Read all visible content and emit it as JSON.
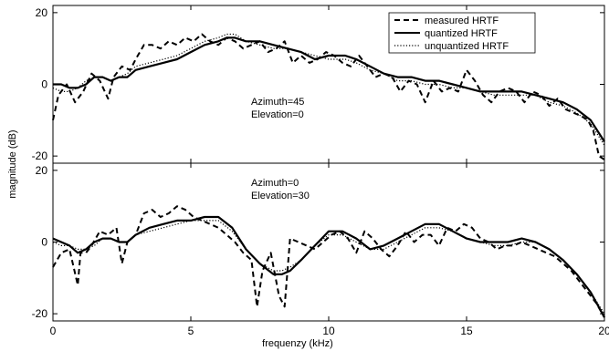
{
  "chart_data": {
    "type": "line",
    "xlabel": "frequenzy (kHz)",
    "ylabel": "magnitude (dB)",
    "xlim": [
      0,
      20
    ],
    "x_ticks": [
      0,
      5,
      10,
      15,
      20
    ],
    "legend": {
      "placement": "top-right",
      "entries": [
        {
          "name": "measured HRTF",
          "style": "dashed"
        },
        {
          "name": "quantized HRTF",
          "style": "solid"
        },
        {
          "name": "unquantized HRTF",
          "style": "dotted"
        }
      ]
    },
    "panels": [
      {
        "annotation": [
          "Azimuth=45",
          "Elevation=0"
        ],
        "ylim": [
          -22,
          22
        ],
        "y_ticks": [
          -20,
          0,
          20
        ],
        "series": [
          {
            "name": "measured HRTF",
            "x": [
              0,
              0.2,
              0.5,
              0.8,
              1.1,
              1.4,
              1.7,
              2.0,
              2.2,
              2.5,
              2.8,
              3.0,
              3.3,
              3.6,
              3.9,
              4.2,
              4.5,
              4.8,
              5.1,
              5.4,
              5.7,
              6.0,
              6.3,
              6.6,
              6.9,
              7.2,
              7.5,
              7.8,
              8.1,
              8.4,
              8.7,
              9.0,
              9.3,
              9.6,
              9.9,
              10.2,
              10.5,
              10.8,
              11.1,
              11.4,
              11.7,
              12.0,
              12.3,
              12.6,
              12.9,
              13.2,
              13.5,
              13.8,
              14.1,
              14.4,
              14.7,
              15.0,
              15.3,
              15.6,
              15.9,
              16.2,
              16.5,
              16.8,
              17.1,
              17.4,
              17.7,
              18.0,
              18.3,
              18.6,
              18.9,
              19.2,
              19.4,
              19.6,
              19.8,
              20.0
            ],
            "y": [
              -10,
              -3,
              0,
              -5,
              -2,
              3,
              1,
              -4,
              2,
              5,
              4,
              7,
              11,
              11,
              10,
              12,
              11,
              13,
              12,
              14,
              12,
              11,
              13,
              12,
              10,
              11,
              12,
              9,
              10,
              12,
              6,
              8,
              6,
              7,
              9,
              8,
              6,
              5,
              8,
              5,
              2,
              3,
              2,
              -2,
              1,
              0,
              -5,
              1,
              -2,
              -1,
              -2,
              4,
              1,
              -3,
              -5,
              -2,
              -1,
              -2,
              -5,
              -2,
              -3,
              -6,
              -4,
              -7,
              -8,
              -9,
              -10,
              -13,
              -20,
              -21
            ]
          },
          {
            "name": "quantized HRTF",
            "x": [
              0,
              0.3,
              0.6,
              0.9,
              1.2,
              1.5,
              1.8,
              2.1,
              2.4,
              2.7,
              3.0,
              3.5,
              4.0,
              4.5,
              5.0,
              5.5,
              6.0,
              6.3,
              6.6,
              7.0,
              7.5,
              8.0,
              8.5,
              9.0,
              9.5,
              10.0,
              10.3,
              10.6,
              11.0,
              11.5,
              12.0,
              12.5,
              13.0,
              13.5,
              14.0,
              14.5,
              15.0,
              15.5,
              16.0,
              16.5,
              17.0,
              17.5,
              18.0,
              18.5,
              19.0,
              19.5,
              20.0
            ],
            "y": [
              0,
              0,
              -1,
              -1,
              0,
              2,
              2,
              1,
              2,
              2,
              4,
              5,
              6,
              7,
              9,
              11,
              12,
              13,
              13,
              12,
              12,
              11,
              10,
              9,
              7,
              8,
              8,
              8,
              7,
              5,
              3,
              2,
              2,
              1,
              1,
              0,
              -1,
              -2,
              -2,
              -2,
              -2,
              -3,
              -4,
              -5,
              -7,
              -10,
              -16
            ]
          },
          {
            "name": "unquantized HRTF",
            "x": [
              0,
              0.3,
              0.6,
              0.9,
              1.2,
              1.5,
              1.8,
              2.1,
              2.4,
              2.7,
              3.0,
              3.5,
              4.0,
              4.5,
              5.0,
              5.5,
              6.0,
              6.3,
              6.6,
              7.0,
              7.5,
              8.0,
              8.5,
              9.0,
              9.5,
              10.0,
              10.3,
              10.6,
              11.0,
              11.5,
              12.0,
              12.5,
              13.0,
              13.5,
              14.0,
              14.5,
              15.0,
              15.5,
              16.0,
              16.5,
              17.0,
              17.5,
              18.0,
              18.5,
              19.0,
              19.5,
              20.0
            ],
            "y": [
              -1,
              -2,
              -2,
              -1,
              1,
              2,
              2,
              1,
              2,
              3,
              5,
              6,
              7,
              8,
              10,
              12,
              13,
              14,
              14,
              12,
              11,
              10,
              10,
              9,
              8,
              7,
              7,
              7,
              6,
              4,
              3,
              1,
              1,
              0,
              0,
              -1,
              -1,
              -2,
              -3,
              -3,
              -3,
              -3,
              -5,
              -6,
              -8,
              -11,
              -17
            ]
          }
        ]
      },
      {
        "annotation": [
          "Azimuth=0",
          "Elevation=30"
        ],
        "ylim": [
          -22,
          22
        ],
        "y_ticks": [
          -20,
          0,
          20
        ],
        "series": [
          {
            "name": "measured HRTF",
            "x": [
              0,
              0.3,
              0.6,
              0.9,
              1.0,
              1.2,
              1.4,
              1.7,
              2.0,
              2.3,
              2.5,
              2.7,
              3.0,
              3.3,
              3.6,
              3.9,
              4.2,
              4.5,
              4.8,
              5.1,
              5.4,
              5.7,
              6.0,
              6.3,
              6.6,
              6.9,
              7.2,
              7.4,
              7.6,
              7.9,
              8.2,
              8.4,
              8.6,
              8.9,
              9.2,
              9.5,
              9.8,
              10.1,
              10.4,
              10.7,
              11.0,
              11.3,
              11.6,
              11.9,
              12.2,
              12.5,
              12.8,
              13.1,
              13.4,
              13.7,
              14.0,
              14.3,
              14.6,
              14.9,
              15.2,
              15.5,
              15.8,
              16.1,
              16.4,
              16.7,
              17.0,
              17.3,
              17.6,
              17.9,
              18.2,
              18.5,
              18.8,
              19.1,
              19.4,
              19.7,
              20.0
            ],
            "y": [
              -7,
              -3,
              -2,
              -12,
              -3,
              -3,
              -1,
              3,
              2,
              4,
              -6,
              0,
              2,
              8,
              9,
              7,
              8,
              10,
              9,
              7,
              6,
              5,
              4,
              2,
              0,
              -3,
              -5,
              -18,
              -8,
              -3,
              -15,
              -18,
              1,
              0,
              -1,
              -2,
              0,
              2,
              3,
              1,
              -3,
              3,
              1,
              -2,
              -4,
              -1,
              3,
              0,
              2,
              2,
              -1,
              4,
              3,
              5,
              4,
              1,
              0,
              -2,
              -1,
              -1,
              0,
              -1,
              -2,
              -3,
              -4,
              -6,
              -8,
              -11,
              -14,
              -17,
              -21
            ]
          },
          {
            "name": "quantized HRTF",
            "x": [
              0,
              0.3,
              0.6,
              0.9,
              1.2,
              1.5,
              1.8,
              2.1,
              2.4,
              2.7,
              3.0,
              3.5,
              4.0,
              4.5,
              5.0,
              5.5,
              6.0,
              6.5,
              7.0,
              7.5,
              8.0,
              8.3,
              8.6,
              9.0,
              9.5,
              10.0,
              10.5,
              11.0,
              11.5,
              12.0,
              12.5,
              13.0,
              13.5,
              14.0,
              14.5,
              15.0,
              15.5,
              16.0,
              16.5,
              17.0,
              17.5,
              18.0,
              18.5,
              19.0,
              19.5,
              20.0
            ],
            "y": [
              1,
              0,
              -1,
              -3,
              -2,
              0,
              1,
              1,
              0,
              0,
              2,
              4,
              5,
              6,
              6,
              7,
              7,
              4,
              -2,
              -6,
              -9,
              -9,
              -8,
              -5,
              -1,
              3,
              3,
              1,
              -2,
              -1,
              1,
              3,
              5,
              5,
              3,
              1,
              0,
              0,
              0,
              1,
              0,
              -2,
              -5,
              -9,
              -14,
              -21
            ]
          },
          {
            "name": "unquantized HRTF",
            "x": [
              0,
              0.3,
              0.6,
              0.9,
              1.2,
              1.5,
              1.8,
              2.1,
              2.4,
              2.7,
              3.0,
              3.5,
              4.0,
              4.5,
              5.0,
              5.5,
              6.0,
              6.5,
              7.0,
              7.5,
              8.0,
              8.3,
              8.6,
              9.0,
              9.5,
              10.0,
              10.5,
              11.0,
              11.5,
              12.0,
              12.5,
              13.0,
              13.5,
              14.0,
              14.5,
              15.0,
              15.5,
              16.0,
              16.5,
              17.0,
              17.5,
              18.0,
              18.5,
              19.0,
              19.5,
              20.0
            ],
            "y": [
              0,
              -1,
              -1,
              -2,
              -2,
              -1,
              1,
              1,
              0,
              0,
              2,
              3,
              4,
              5,
              6,
              6,
              6,
              3,
              -2,
              -6,
              -8,
              -8,
              -7,
              -5,
              -1,
              2,
              2,
              0,
              -2,
              -2,
              0,
              2,
              4,
              4,
              3,
              1,
              0,
              -1,
              -1,
              0,
              0,
              -2,
              -5,
              -9,
              -14,
              -20
            ]
          }
        ]
      }
    ]
  }
}
